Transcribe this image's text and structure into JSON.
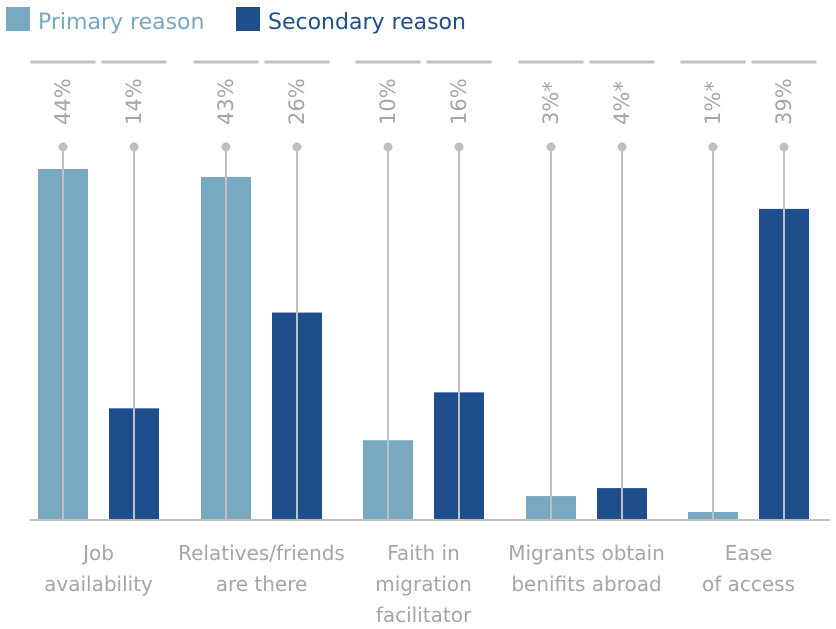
{
  "chart_data": {
    "type": "bar",
    "title": "",
    "xlabel": "",
    "ylabel": "",
    "ylim": [
      0,
      44
    ],
    "grid": false,
    "legend_position": "top-left",
    "categories": [
      [
        "Job",
        "availability"
      ],
      [
        "Relatives/friends",
        "are there"
      ],
      [
        "Faith in",
        "migration",
        "facilitator"
      ],
      [
        "Migrants obtain",
        "benifits abroad"
      ],
      [
        "Ease",
        "of access"
      ]
    ],
    "series": [
      {
        "name": "Primary reason",
        "color": "#78a9c0",
        "values": [
          44,
          43,
          10,
          3,
          1
        ],
        "labels": [
          "44%",
          "43%",
          "10%",
          "3%*",
          "1%*"
        ]
      },
      {
        "name": "Secondary reason",
        "color": "#1f4e8c",
        "values": [
          14,
          26,
          16,
          4,
          39
        ],
        "labels": [
          "14%",
          "26%",
          "16%",
          "4%*",
          "39%"
        ]
      }
    ]
  },
  "colors": {
    "guide_line": "#c0c0c0",
    "baseline": "#bfbfbf",
    "text": "#a6a6a6"
  }
}
